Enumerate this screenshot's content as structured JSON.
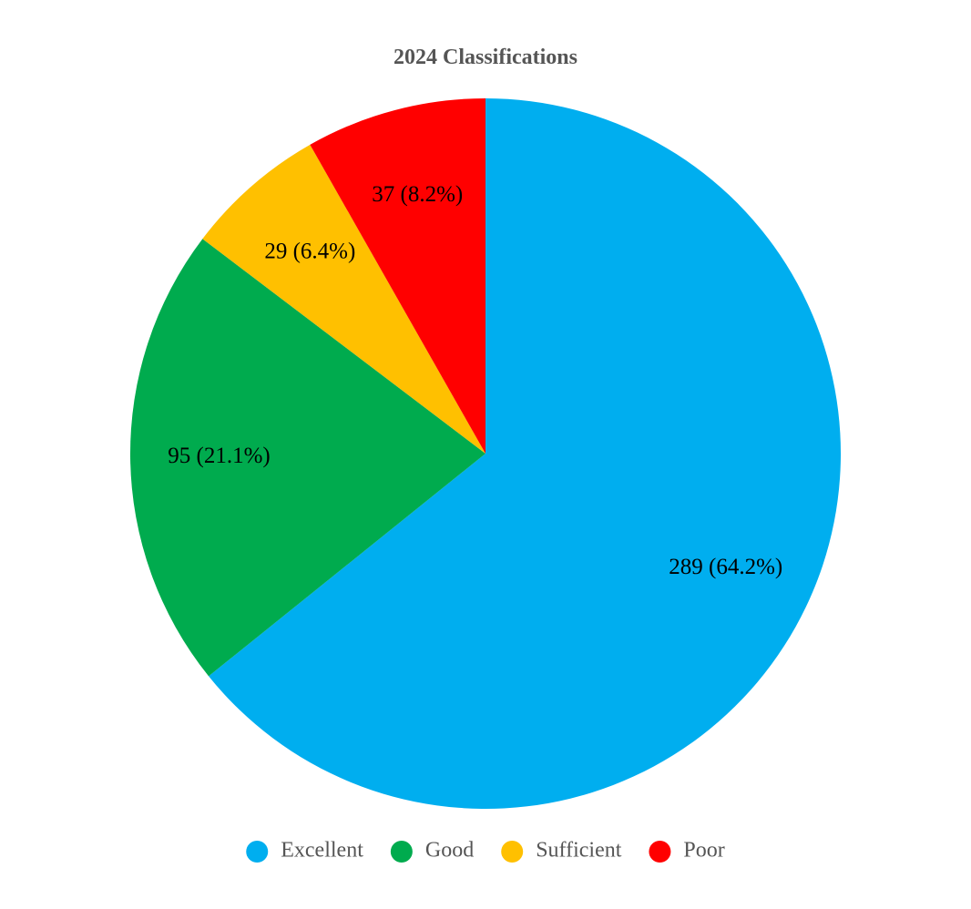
{
  "chart_data": {
    "type": "pie",
    "title": "2024 Classifications",
    "categories": [
      "Excellent",
      "Good",
      "Sufficient",
      "Poor"
    ],
    "values": [
      289,
      95,
      29,
      37
    ],
    "labels": [
      "289 (64.2%)",
      "95 (21.1%)",
      "29 (6.4%)",
      "37 (8.2%)"
    ],
    "colors": [
      "#00AEEF",
      "#00AB4E",
      "#FFC000",
      "#FF0000"
    ],
    "start_angle_deg": 0,
    "direction": "clockwise",
    "legend_position": "bottom"
  }
}
